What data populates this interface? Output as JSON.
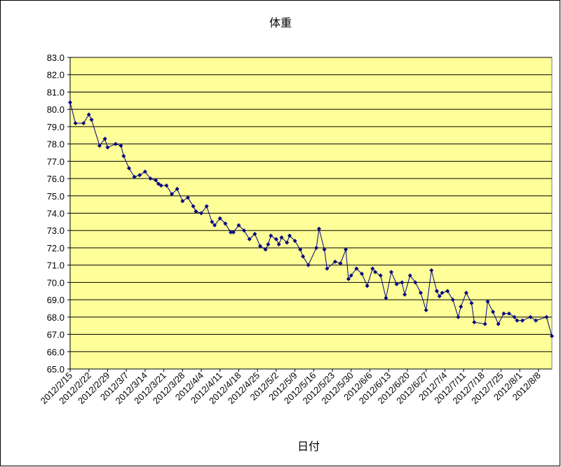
{
  "chart_data": {
    "type": "line",
    "title": "体重",
    "x_label": "日付",
    "x": [
      "2012/2/15",
      "2012/2/17",
      "2012/2/20",
      "2012/2/22",
      "2012/2/23",
      "2012/2/26",
      "2012/2/28",
      "2012/2/29",
      "2012/3/3",
      "2012/3/5",
      "2012/3/6",
      "2012/3/8",
      "2012/3/10",
      "2012/3/12",
      "2012/3/14",
      "2012/3/16",
      "2012/3/18",
      "2012/3/19",
      "2012/3/20",
      "2012/3/22",
      "2012/3/24",
      "2012/3/26",
      "2012/3/28",
      "2012/3/30",
      "2012/4/1",
      "2012/4/2",
      "2012/4/4",
      "2012/4/6",
      "2012/4/8",
      "2012/4/9",
      "2012/4/11",
      "2012/4/13",
      "2012/4/15",
      "2012/4/16",
      "2012/4/18",
      "2012/4/20",
      "2012/4/22",
      "2012/4/24",
      "2012/4/26",
      "2012/4/28",
      "2012/4/29",
      "2012/4/30",
      "2012/5/2",
      "2012/5/3",
      "2012/5/4",
      "2012/5/6",
      "2012/5/7",
      "2012/5/9",
      "2012/5/11",
      "2012/5/12",
      "2012/5/14",
      "2012/5/17",
      "2012/5/18",
      "2012/5/20",
      "2012/5/21",
      "2012/5/24",
      "2012/5/26",
      "2012/5/28",
      "2012/5/29",
      "2012/5/30",
      "2012/6/1",
      "2012/6/3",
      "2012/6/5",
      "2012/6/7",
      "2012/6/8",
      "2012/6/10",
      "2012/6/12",
      "2012/6/14",
      "2012/6/16",
      "2012/6/18",
      "2012/6/19",
      "2012/6/21",
      "2012/6/23",
      "2012/6/25",
      "2012/6/27",
      "2012/6/29",
      "2012/7/1",
      "2012/7/2",
      "2012/7/3",
      "2012/7/5",
      "2012/7/7",
      "2012/7/9",
      "2012/7/10",
      "2012/7/12",
      "2012/7/14",
      "2012/7/15",
      "2012/7/19",
      "2012/7/20",
      "2012/7/22",
      "2012/7/24",
      "2012/7/26",
      "2012/7/28",
      "2012/7/30",
      "2012/7/31",
      "2012/8/2",
      "2012/8/5",
      "2012/8/7",
      "2012/8/11",
      "2012/8/13"
    ],
    "values": [
      80.4,
      79.2,
      79.2,
      79.7,
      79.4,
      77.9,
      78.3,
      77.8,
      78.0,
      77.9,
      77.3,
      76.6,
      76.1,
      76.2,
      76.4,
      76.0,
      75.9,
      75.7,
      75.6,
      75.6,
      75.1,
      75.4,
      74.7,
      74.9,
      74.4,
      74.1,
      74.0,
      74.4,
      73.5,
      73.3,
      73.7,
      73.4,
      72.9,
      72.9,
      73.3,
      73.0,
      72.5,
      72.8,
      72.1,
      71.9,
      72.2,
      72.7,
      72.5,
      72.2,
      72.6,
      72.3,
      72.7,
      72.4,
      71.9,
      71.5,
      71.0,
      72.0,
      73.1,
      71.9,
      70.8,
      71.2,
      71.1,
      71.9,
      70.2,
      70.4,
      70.8,
      70.5,
      69.8,
      70.8,
      70.6,
      70.4,
      69.1,
      70.6,
      69.9,
      70.0,
      69.3,
      70.4,
      70.0,
      69.4,
      68.4,
      70.7,
      69.5,
      69.2,
      69.4,
      69.5,
      69.0,
      68.0,
      68.6,
      69.4,
      68.8,
      67.7,
      67.6,
      68.9,
      68.3,
      67.6,
      68.2,
      68.2,
      68.0,
      67.8,
      67.8,
      68.0,
      67.8,
      68.0,
      66.9
    ],
    "color": "#000080",
    "xlim": [
      "2012/2/15",
      "2012/8/13"
    ],
    "xticks": [
      "2012/2/15",
      "2012/2/22",
      "2012/2/29",
      "2012/3/7",
      "2012/3/14",
      "2012/3/21",
      "2012/3/28",
      "2012/4/4",
      "2012/4/11",
      "2012/4/18",
      "2012/4/25",
      "2012/5/2",
      "2012/5/9",
      "2012/5/16",
      "2012/5/23",
      "2012/5/30",
      "2012/6/6",
      "2012/6/13",
      "2012/6/20",
      "2012/6/27",
      "2012/7/4",
      "2012/7/11",
      "2012/7/18",
      "2012/7/25",
      "2012/8/1",
      "2012/8/8"
    ],
    "ylim": [
      65,
      83
    ],
    "yticks": [
      {
        "value": 65,
        "label": "65.0"
      },
      {
        "value": 66,
        "label": "66.0"
      },
      {
        "value": 67,
        "label": "67.0"
      },
      {
        "value": 68,
        "label": "68.0"
      },
      {
        "value": 69,
        "label": "69.0"
      },
      {
        "value": 70,
        "label": "70.0"
      },
      {
        "value": 71,
        "label": "71.0"
      },
      {
        "value": 72,
        "label": "72.0"
      },
      {
        "value": 73,
        "label": "73.0"
      },
      {
        "value": 74,
        "label": "74.0"
      },
      {
        "value": 75,
        "label": "75.0"
      },
      {
        "value": 76,
        "label": "76.0"
      },
      {
        "value": 77,
        "label": "77.0"
      },
      {
        "value": 78,
        "label": "78.0"
      },
      {
        "value": 79,
        "label": "79.0"
      },
      {
        "value": 80,
        "label": "80.0"
      },
      {
        "value": 81,
        "label": "81.0"
      },
      {
        "value": 82,
        "label": "82.0"
      },
      {
        "value": 83,
        "label": "83.0"
      }
    ],
    "grid": true,
    "plot_background": "#ffff99"
  }
}
